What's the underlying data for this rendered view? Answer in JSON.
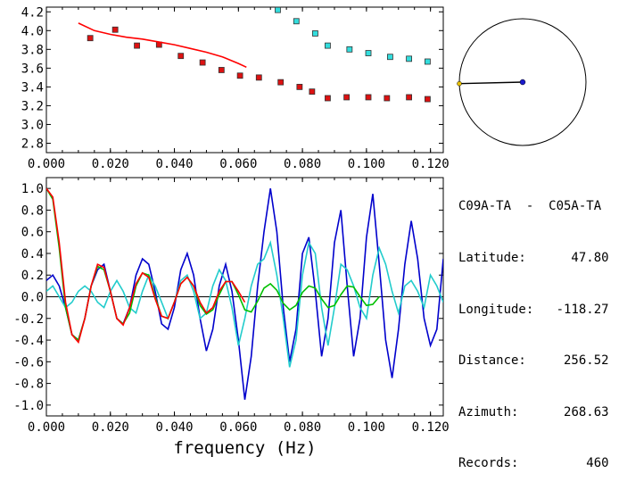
{
  "colors": {
    "red_series": "#ff0000",
    "cyan_series": "#00e5e5",
    "blue_series": "#0000cc",
    "green_series": "#00c000",
    "cyan_line": "#22cccc",
    "marker_red": "#dd1111",
    "marker_cyan": "#33dddd"
  },
  "info": {
    "title": "C09A-TA  -  C05A-TA",
    "rows": [
      {
        "label": "Latitude:",
        "value": "47.80"
      },
      {
        "label": "Longitude:",
        "value": "-118.27"
      },
      {
        "label": "Distance:",
        "value": "256.52"
      },
      {
        "label": "Azimuth:",
        "value": "268.63"
      },
      {
        "label": "Records:",
        "value": "460"
      }
    ]
  },
  "azimuth_dial": {
    "azimuth_deg": 268.63
  },
  "chart_data": [
    {
      "type": "scatter",
      "xlim": [
        0.0,
        0.124
      ],
      "ylim": [
        2.7,
        4.25
      ],
      "xticks": [
        "0.000",
        "0.020",
        "0.040",
        "0.060",
        "0.080",
        "0.100",
        "0.120"
      ],
      "yticks": [
        "2.8",
        "3.0",
        "3.2",
        "3.4",
        "3.6",
        "3.8",
        "4.0",
        "4.2"
      ],
      "xlabel": "",
      "ylabel": "",
      "grid": false,
      "series": [
        {
          "kind": "markers",
          "color_key": "marker_red",
          "x": [
            0.0137,
            0.0215,
            0.0283,
            0.0352,
            0.042,
            0.0488,
            0.0547,
            0.0605,
            0.0664,
            0.0732,
            0.0791,
            0.083,
            0.0879,
            0.0938,
            0.1006,
            0.1064,
            0.1133,
            0.1191
          ],
          "y": [
            3.92,
            4.01,
            3.84,
            3.85,
            3.73,
            3.66,
            3.58,
            3.52,
            3.5,
            3.45,
            3.4,
            3.35,
            3.28,
            3.29,
            3.29,
            3.28,
            3.29,
            3.27
          ]
        },
        {
          "kind": "markers",
          "color_key": "marker_cyan",
          "x": [
            0.0723,
            0.0781,
            0.084,
            0.0879,
            0.0947,
            0.1006,
            0.1074,
            0.1133,
            0.1191
          ],
          "y": [
            4.22,
            4.1,
            3.97,
            3.84,
            3.8,
            3.76,
            3.72,
            3.7,
            3.67
          ]
        },
        {
          "kind": "line",
          "color_key": "red_series",
          "x": [
            0.01,
            0.015,
            0.02,
            0.025,
            0.03,
            0.035,
            0.04,
            0.045,
            0.05,
            0.055,
            0.06,
            0.0625
          ],
          "y": [
            4.08,
            4.0,
            3.96,
            3.93,
            3.91,
            3.88,
            3.85,
            3.81,
            3.77,
            3.72,
            3.65,
            3.61
          ]
        }
      ]
    },
    {
      "type": "line",
      "xlim": [
        0.0,
        0.124
      ],
      "ylim": [
        -1.1,
        1.1
      ],
      "xticks": [
        "0.000",
        "0.020",
        "0.040",
        "0.060",
        "0.080",
        "0.100",
        "0.120"
      ],
      "yticks": [
        "1.0",
        "0.8",
        "0.6",
        "0.4",
        "0.2",
        "0.0",
        "-0.2",
        "-0.4",
        "-0.6",
        "-0.8",
        "-1.0"
      ],
      "xlabel": "frequency (Hz)",
      "ylabel": "",
      "grid": false,
      "zero_line": true,
      "series": [
        {
          "color_key": "blue_series",
          "x": [
            0.0,
            0.002,
            0.004,
            0.006,
            0.008,
            0.01,
            0.012,
            0.014,
            0.016,
            0.018,
            0.02,
            0.022,
            0.024,
            0.026,
            0.028,
            0.03,
            0.032,
            0.034,
            0.036,
            0.038,
            0.04,
            0.042,
            0.044,
            0.046,
            0.048,
            0.05,
            0.052,
            0.054,
            0.056,
            0.058,
            0.06,
            0.062,
            0.064,
            0.066,
            0.068,
            0.07,
            0.072,
            0.074,
            0.076,
            0.078,
            0.08,
            0.082,
            0.084,
            0.086,
            0.088,
            0.09,
            0.092,
            0.094,
            0.096,
            0.098,
            0.1,
            0.102,
            0.104,
            0.106,
            0.108,
            0.11,
            0.112,
            0.114,
            0.116,
            0.118,
            0.12,
            0.122,
            0.124
          ],
          "y": [
            0.15,
            0.2,
            0.1,
            -0.1,
            -0.35,
            -0.4,
            -0.2,
            0.1,
            0.25,
            0.3,
            0.05,
            -0.2,
            -0.25,
            -0.1,
            0.2,
            0.35,
            0.3,
            0.05,
            -0.25,
            -0.3,
            -0.1,
            0.25,
            0.4,
            0.2,
            -0.2,
            -0.5,
            -0.3,
            0.1,
            0.3,
            0.05,
            -0.4,
            -0.95,
            -0.55,
            0.1,
            0.6,
            1.0,
            0.6,
            -0.1,
            -0.6,
            -0.3,
            0.4,
            0.55,
            0.05,
            -0.55,
            -0.2,
            0.5,
            0.8,
            0.1,
            -0.55,
            -0.2,
            0.55,
            0.95,
            0.3,
            -0.4,
            -0.75,
            -0.3,
            0.3,
            0.7,
            0.35,
            -0.2,
            -0.45,
            -0.3,
            0.35
          ]
        },
        {
          "color_key": "cyan_line",
          "x": [
            0.0,
            0.002,
            0.004,
            0.006,
            0.008,
            0.01,
            0.012,
            0.014,
            0.016,
            0.018,
            0.02,
            0.022,
            0.024,
            0.026,
            0.028,
            0.03,
            0.032,
            0.034,
            0.036,
            0.038,
            0.04,
            0.042,
            0.044,
            0.046,
            0.048,
            0.05,
            0.052,
            0.054,
            0.056,
            0.058,
            0.06,
            0.062,
            0.064,
            0.066,
            0.068,
            0.07,
            0.072,
            0.074,
            0.076,
            0.078,
            0.08,
            0.082,
            0.084,
            0.086,
            0.088,
            0.09,
            0.092,
            0.094,
            0.096,
            0.098,
            0.1,
            0.102,
            0.104,
            0.106,
            0.108,
            0.11,
            0.112,
            0.114,
            0.116,
            0.118,
            0.12,
            0.122,
            0.124
          ],
          "y": [
            0.05,
            0.1,
            0.0,
            -0.1,
            -0.05,
            0.05,
            0.1,
            0.05,
            -0.05,
            -0.1,
            0.05,
            0.15,
            0.05,
            -0.1,
            -0.15,
            0.05,
            0.2,
            0.1,
            -0.05,
            -0.2,
            -0.05,
            0.15,
            0.2,
            0.05,
            -0.2,
            -0.15,
            0.1,
            0.25,
            0.15,
            -0.1,
            -0.45,
            -0.2,
            0.1,
            0.3,
            0.35,
            0.5,
            0.2,
            -0.2,
            -0.65,
            -0.4,
            0.2,
            0.5,
            0.4,
            -0.1,
            -0.45,
            -0.1,
            0.3,
            0.25,
            0.1,
            -0.1,
            -0.2,
            0.2,
            0.45,
            0.3,
            0.05,
            -0.15,
            0.1,
            0.15,
            0.05,
            -0.1,
            0.2,
            0.1,
            -0.05
          ]
        },
        {
          "color_key": "green_series",
          "x": [
            0.0,
            0.002,
            0.004,
            0.006,
            0.008,
            0.01,
            0.012,
            0.014,
            0.016,
            0.018,
            0.02,
            0.022,
            0.024,
            0.026,
            0.028,
            0.03,
            0.032,
            0.034,
            0.036,
            0.038,
            0.04,
            0.042,
            0.044,
            0.046,
            0.048,
            0.05,
            0.052,
            0.054,
            0.056,
            0.058,
            0.06,
            0.062,
            0.064,
            0.066,
            0.068,
            0.07,
            0.072,
            0.074,
            0.076,
            0.078,
            0.08,
            0.082,
            0.084,
            0.086,
            0.088,
            0.09,
            0.092,
            0.094,
            0.096,
            0.098,
            0.1,
            0.102,
            0.104
          ],
          "y": [
            1.0,
            0.9,
            0.45,
            -0.1,
            -0.35,
            -0.4,
            -0.2,
            0.1,
            0.28,
            0.25,
            0.05,
            -0.2,
            -0.25,
            -0.15,
            0.1,
            0.22,
            0.2,
            0.0,
            -0.18,
            -0.2,
            -0.05,
            0.12,
            0.18,
            0.1,
            -0.08,
            -0.16,
            -0.12,
            0.02,
            0.14,
            0.14,
            0.02,
            -0.12,
            -0.14,
            -0.04,
            0.08,
            0.12,
            0.06,
            -0.06,
            -0.12,
            -0.08,
            0.04,
            0.1,
            0.08,
            -0.02,
            -0.1,
            -0.08,
            0.02,
            0.1,
            0.09,
            0.0,
            -0.08,
            -0.07,
            0.0
          ]
        },
        {
          "color_key": "red_series",
          "x": [
            0.0,
            0.002,
            0.004,
            0.006,
            0.008,
            0.01,
            0.012,
            0.014,
            0.016,
            0.018,
            0.02,
            0.022,
            0.024,
            0.026,
            0.028,
            0.03,
            0.032,
            0.034,
            0.036,
            0.038,
            0.04,
            0.042,
            0.044,
            0.046,
            0.048,
            0.05,
            0.052,
            0.054,
            0.056,
            0.058,
            0.06,
            0.062
          ],
          "y": [
            1.0,
            0.92,
            0.5,
            -0.05,
            -0.35,
            -0.42,
            -0.2,
            0.1,
            0.3,
            0.27,
            0.05,
            -0.2,
            -0.26,
            -0.1,
            0.12,
            0.22,
            0.18,
            -0.02,
            -0.18,
            -0.2,
            -0.05,
            0.12,
            0.18,
            0.1,
            -0.05,
            -0.15,
            -0.1,
            0.05,
            0.14,
            0.14,
            0.05,
            -0.05
          ]
        }
      ]
    }
  ]
}
